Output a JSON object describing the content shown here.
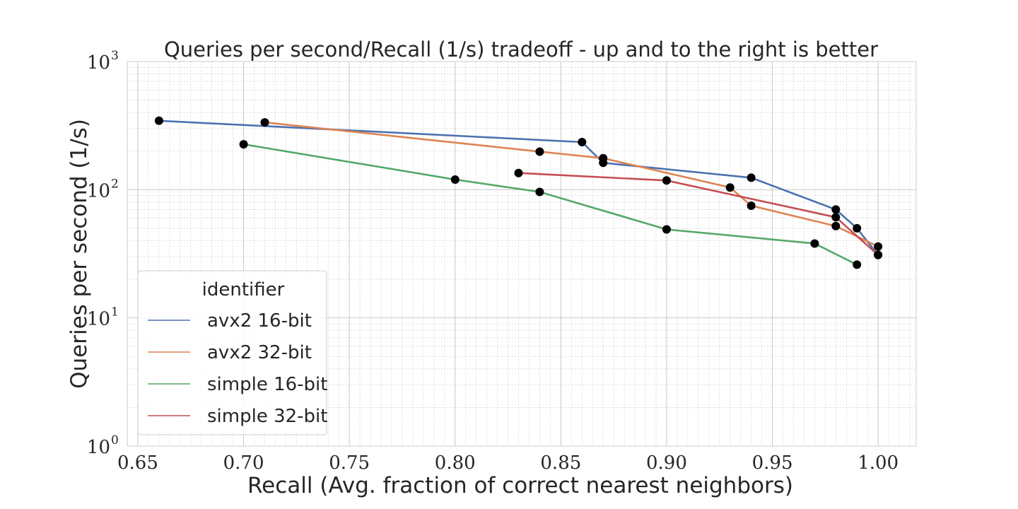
{
  "chart_data": {
    "type": "line",
    "title": "Queries per second/Recall (1/s) tradeoff - up and to the right is better",
    "xlabel": "Recall (Avg. fraction of correct nearest neighbors)",
    "ylabel": "Queries per second (1/s)",
    "xlim": [
      0.645,
      1.018
    ],
    "ylim": [
      1,
      1000
    ],
    "yscale": "log",
    "grid": true,
    "x_ticks": [
      "0.65",
      "0.70",
      "0.75",
      "0.80",
      "0.85",
      "0.90",
      "0.95",
      "1.00"
    ],
    "y_ticks": [
      {
        "base": "10",
        "exp": "0"
      },
      {
        "base": "10",
        "exp": "1"
      },
      {
        "base": "10",
        "exp": "2"
      },
      {
        "base": "10",
        "exp": "3"
      }
    ],
    "legend": {
      "placement": "lower-left",
      "title": "identifier"
    },
    "series": [
      {
        "name": "avx2 16-bit",
        "color": "#4c72b0",
        "points": [
          [
            0.66,
            345
          ],
          [
            0.86,
            235
          ],
          [
            0.87,
            162
          ],
          [
            0.94,
            124
          ],
          [
            0.98,
            70
          ],
          [
            0.99,
            50
          ],
          [
            1.0,
            31
          ]
        ]
      },
      {
        "name": "avx2 32-bit",
        "color": "#dd8452",
        "points": [
          [
            0.71,
            335
          ],
          [
            0.84,
            198
          ],
          [
            0.87,
            176
          ],
          [
            0.93,
            104
          ],
          [
            0.94,
            75
          ],
          [
            0.98,
            52
          ],
          [
            1.0,
            36
          ]
        ]
      },
      {
        "name": "simple 16-bit",
        "color": "#55a868",
        "points": [
          [
            0.7,
            226
          ],
          [
            0.8,
            120
          ],
          [
            0.84,
            96
          ],
          [
            0.9,
            49
          ],
          [
            0.97,
            38
          ],
          [
            0.99,
            26
          ]
        ]
      },
      {
        "name": "simple 32-bit",
        "color": "#c44e52",
        "points": [
          [
            0.83,
            135
          ],
          [
            0.9,
            118
          ],
          [
            0.98,
            61
          ],
          [
            1.0,
            31
          ]
        ]
      }
    ],
    "marker_color": "#000000"
  }
}
